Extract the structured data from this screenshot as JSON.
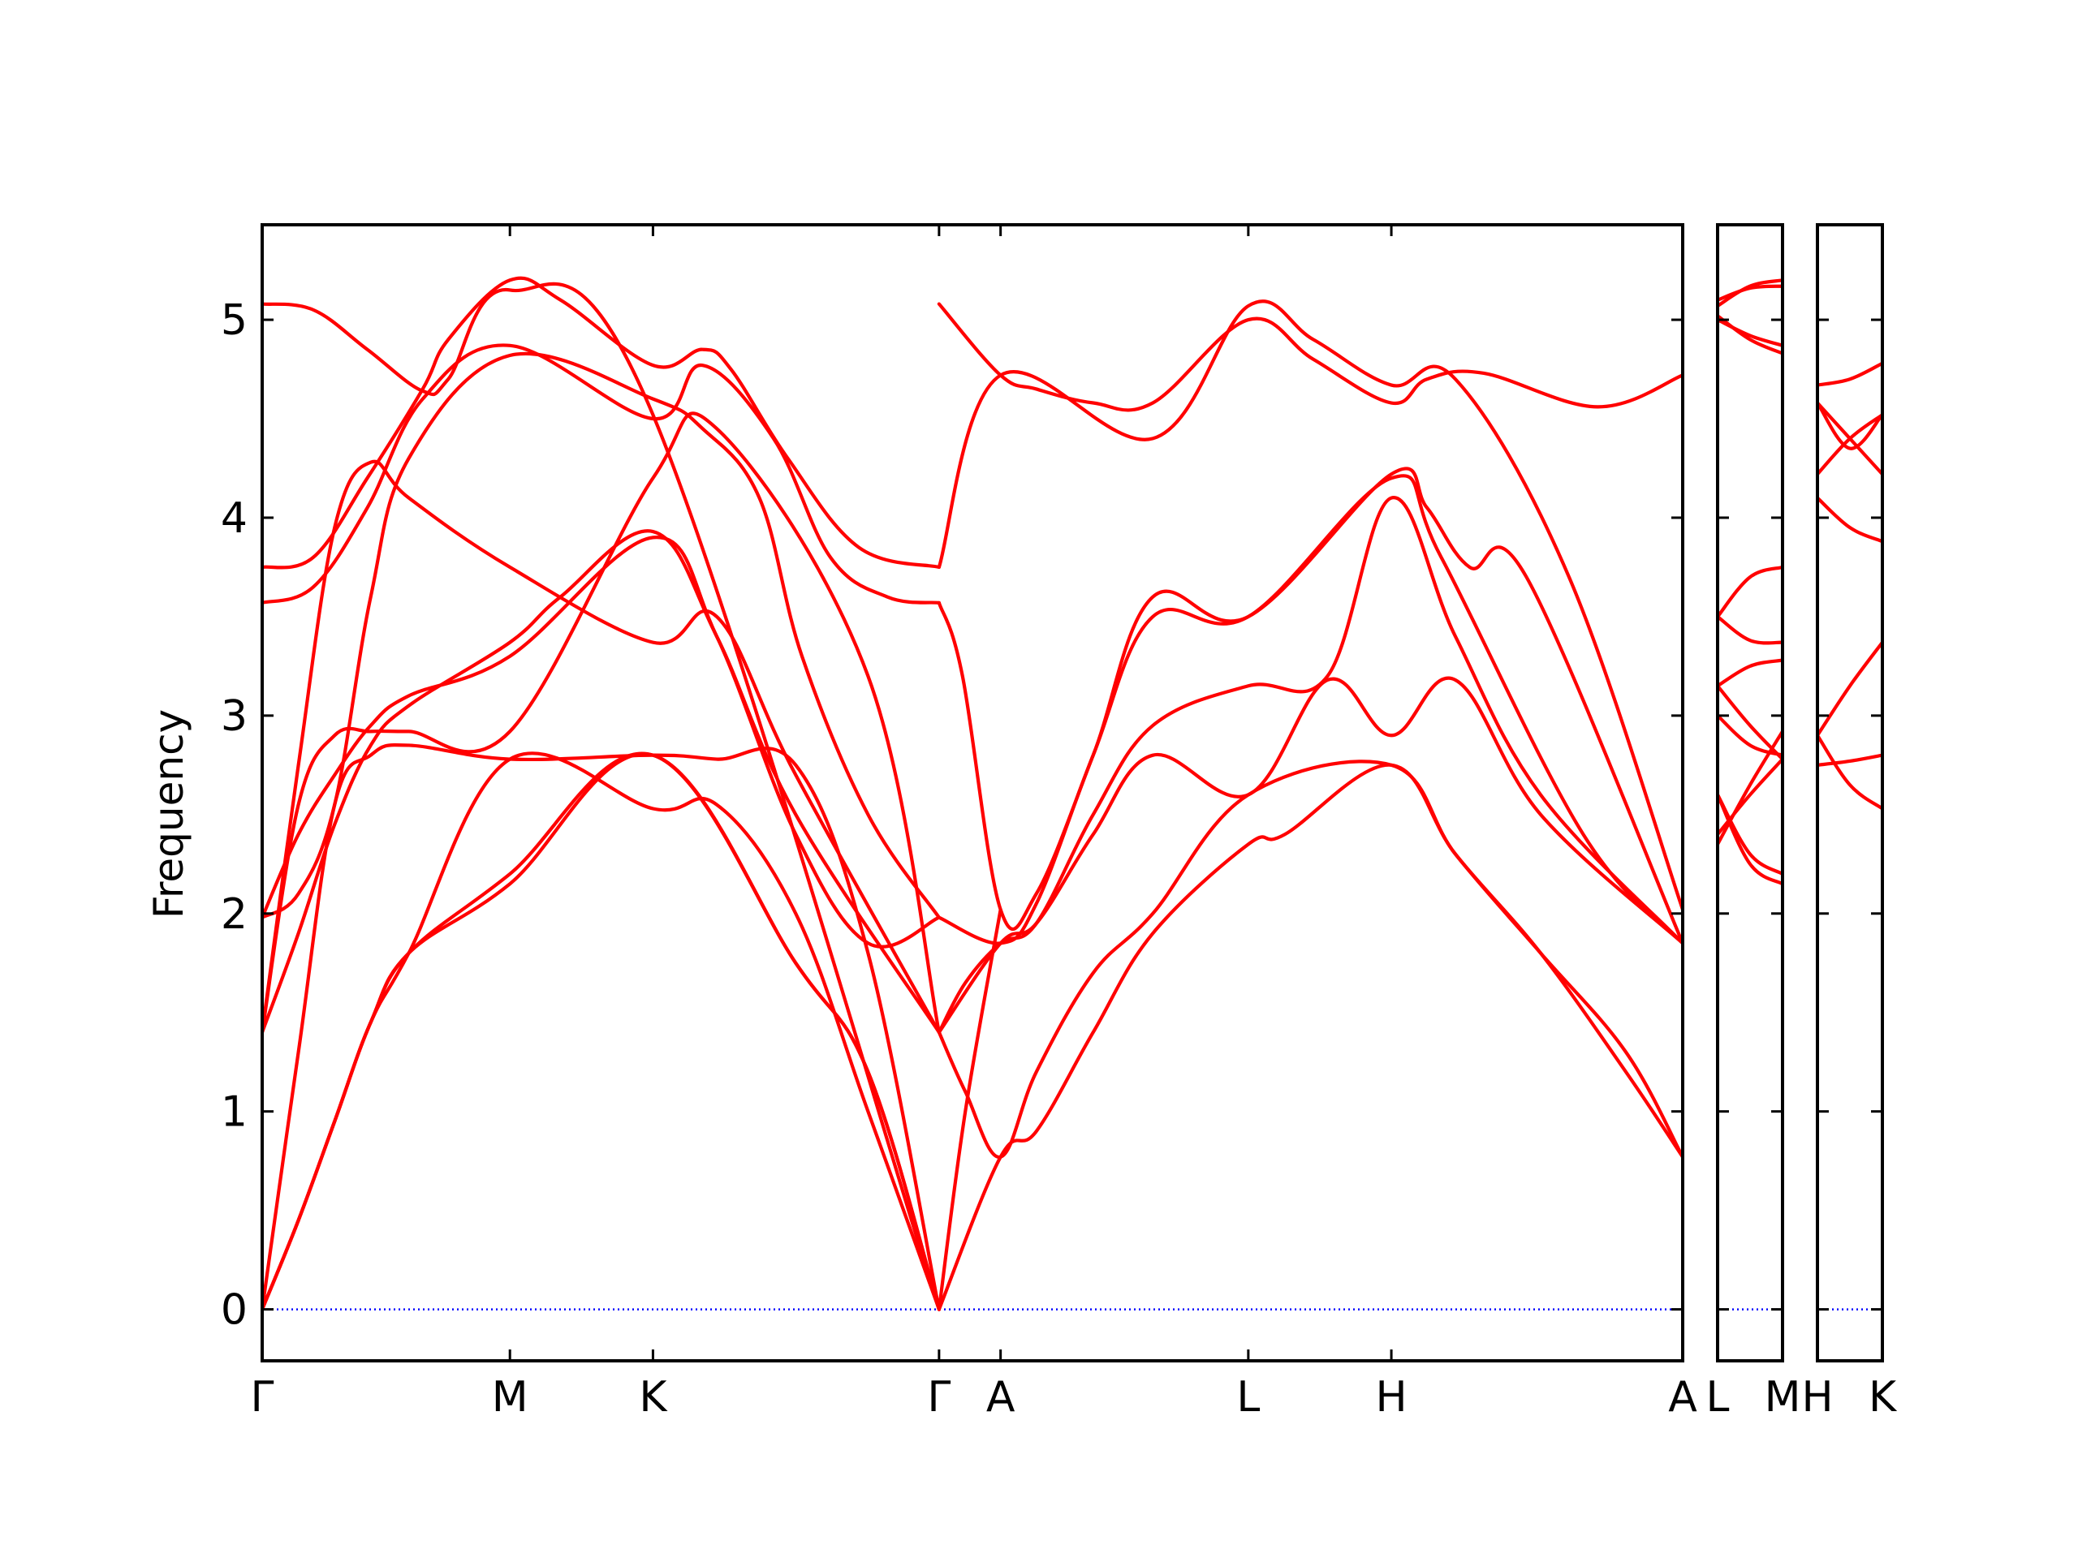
{
  "chart_data": {
    "type": "line",
    "ylabel": "Frequency",
    "ylim": [
      -0.26,
      5.48
    ],
    "yticks": [
      0,
      1,
      2,
      3,
      4,
      5
    ],
    "zero_line_color": "#0000ff",
    "band_color": "#ff0000",
    "panels": [
      {
        "xlim": [
          0,
          1
        ],
        "xticks": [
          {
            "x": 0.0,
            "label": "Γ"
          },
          {
            "x": 0.1744,
            "label": "M"
          },
          {
            "x": 0.2751,
            "label": "K"
          },
          {
            "x": 0.4765,
            "label": "Γ"
          },
          {
            "x": 0.5198,
            "label": "A"
          },
          {
            "x": 0.6942,
            "label": "L"
          },
          {
            "x": 0.7949,
            "label": "H"
          },
          {
            "x": 1.0,
            "label": "A"
          }
        ],
        "series": [
          {
            "x": [
              0,
              0.036,
              0.074,
              0.113,
              0.131,
              0.1744,
              0.2751,
              0.4765
            ],
            "y": [
              5.08,
              5.05,
              4.85,
              4.64,
              4.7,
              5.15,
              4.52,
              0.0
            ]
          },
          {
            "x": [
              0,
              0.036,
              0.074,
              0.113,
              0.131,
              0.1744,
              0.21,
              0.2751,
              0.31,
              0.33,
              0.37,
              0.42,
              0.4765
            ],
            "y": [
              3.75,
              3.8,
              4.2,
              4.65,
              4.9,
              5.2,
              5.1,
              4.77,
              4.85,
              4.75,
              4.3,
              3.85,
              3.75
            ]
          },
          {
            "x": [
              0,
              0.036,
              0.074,
              0.113,
              0.1744,
              0.2751,
              0.31,
              0.36,
              0.4,
              0.44,
              0.4765
            ],
            "y": [
              3.57,
              3.65,
              4.05,
              4.6,
              4.87,
              4.5,
              4.77,
              4.4,
              3.8,
              3.6,
              3.57
            ]
          },
          {
            "x": [
              0,
              0.0255,
              0.051,
              0.0764,
              0.1032,
              0.1744,
              0.2751,
              0.32,
              0.3756,
              0.4765
            ],
            "y": [
              1.4,
              2.75,
              3.95,
              4.28,
              4.1,
              3.75,
              3.37,
              3.5,
              2.7,
              1.4
            ]
          },
          {
            "x": [
              0,
              0.0255,
              0.051,
              0.0764,
              0.1032,
              0.1744,
              0.2751,
              0.31,
              0.35,
              0.38,
              0.4265,
              0.4765
            ],
            "y": [
              1.98,
              2.1,
              2.55,
              3.6,
              4.3,
              4.82,
              4.6,
              4.45,
              4.1,
              3.3,
              2.5,
              1.98
            ]
          },
          {
            "x": [
              0,
              0.0255,
              0.051,
              0.0764,
              0.1032,
              0.1744,
              0.2751,
              0.32,
              0.4265,
              0.4765
            ],
            "y": [
              1.4,
              2.55,
              2.9,
              2.92,
              2.92,
              2.92,
              4.2,
              4.45,
              3.2,
              1.4
            ]
          },
          {
            "x": [
              0,
              0.0255,
              0.051,
              0.0764,
              0.1032,
              0.1744,
              0.21,
              0.2751,
              0.32,
              0.3756,
              0.4765
            ],
            "y": [
              1.4,
              1.9,
              2.45,
              2.85,
              3.05,
              3.37,
              3.6,
              3.93,
              3.4,
              2.5,
              1.4
            ]
          },
          {
            "x": [
              0,
              0.0255,
              0.051,
              0.0764,
              0.1032,
              0.1744,
              0.2751,
              0.32,
              0.3756,
              0.4265,
              0.4765
            ],
            "y": [
              1.98,
              2.4,
              2.7,
              2.95,
              3.1,
              3.3,
              3.9,
              3.4,
              2.4,
              1.85,
              1.98
            ]
          },
          {
            "x": [
              0,
              0.0255,
              0.051,
              0.0764,
              0.1032,
              0.1744,
              0.2751,
              0.32,
              0.3756,
              0.4265,
              0.4765
            ],
            "y": [
              0,
              1.3,
              2.55,
              2.8,
              2.85,
              2.78,
              2.8,
              2.78,
              2.75,
              1.8,
              0.0
            ]
          },
          {
            "x": [
              0,
              0.0255,
              0.051,
              0.0764,
              0.1032,
              0.1744,
              0.2751,
              0.32,
              0.3756,
              0.4265,
              0.4765
            ],
            "y": [
              0,
              0.45,
              0.95,
              1.45,
              1.8,
              2.78,
              2.53,
              2.55,
              2.0,
              1.0,
              0.0
            ]
          },
          {
            "x": [
              0,
              0.0255,
              0.051,
              0.0764,
              0.1032,
              0.1744,
              0.2751,
              0.3756,
              0.4265,
              0.4765
            ],
            "y": [
              0,
              0.45,
              0.95,
              1.45,
              1.8,
              2.2,
              2.8,
              1.75,
              1.2,
              0.0
            ]
          },
          {
            "x": [
              0,
              0.0255,
              0.051,
              0.0764,
              0.1032,
              0.1744,
              0.2751,
              0.3756,
              0.4265,
              0.4765
            ],
            "y": [
              0,
              0.45,
              0.95,
              1.45,
              1.8,
              2.15,
              2.8,
              1.75,
              1.2,
              0.0
            ]
          },
          {
            "x": [
              0.4765,
              0.5198,
              0.545,
              0.585,
              0.627,
              0.6942,
              0.74,
              0.7949,
              0.82,
              0.86,
              0.94,
              1.0
            ],
            "y": [
              5.08,
              4.72,
              4.65,
              4.58,
              4.58,
              5.0,
              4.8,
              4.58,
              4.7,
              4.73,
              4.56,
              4.72
            ]
          },
          {
            "x": [
              0.4765,
              0.5198,
              0.627,
              0.6942,
              0.74,
              0.7949,
              0.84,
              0.92,
              1.0
            ],
            "y": [
              3.75,
              4.72,
              4.4,
              5.07,
              4.9,
              4.67,
              4.7,
              3.7,
              2.02
            ]
          },
          {
            "x": [
              0.4765,
              0.493,
              0.5198,
              0.545,
              0.585,
              0.627,
              0.6942,
              0.7949,
              0.82,
              0.85,
              0.89,
              1.0
            ],
            "y": [
              3.57,
              3.2,
              2.02,
              2.1,
              2.8,
              3.6,
              3.5,
              4.22,
              4.05,
              3.75,
              3.7,
              1.85
            ]
          },
          {
            "x": [
              0.4765,
              0.5198,
              0.545,
              0.585,
              0.627,
              0.6942,
              0.7949,
              0.83,
              0.93,
              1.0
            ],
            "y": [
              1.98,
              1.85,
              2.05,
              2.8,
              3.5,
              3.5,
              4.2,
              3.8,
              2.4,
              1.85
            ]
          },
          {
            "x": [
              0.4765,
              0.495,
              0.5198,
              0.545,
              0.585,
              0.627,
              0.6942,
              0.75,
              0.7949,
              0.84,
              0.9,
              1.0
            ],
            "y": [
              1.4,
              1.65,
              1.85,
              1.95,
              2.5,
              2.95,
              3.15,
              3.2,
              4.1,
              3.4,
              2.6,
              1.85
            ]
          },
          {
            "x": [
              0.4765,
              0.5198,
              0.545,
              0.585,
              0.627,
              0.6942,
              0.75,
              0.7949,
              0.84,
              0.9,
              1.0
            ],
            "y": [
              1.4,
              1.85,
              1.95,
              2.4,
              2.8,
              2.6,
              3.18,
              2.9,
              3.18,
              2.5,
              1.85
            ]
          },
          {
            "x": [
              0.4765,
              0.495,
              0.5198,
              0.545,
              0.585,
              0.627,
              0.6942,
              0.7949,
              0.84,
              0.9,
              0.96,
              1.0
            ],
            "y": [
              1.4,
              1.1,
              0.77,
              1.2,
              1.7,
              2.0,
              2.6,
              2.75,
              2.3,
              1.8,
              1.3,
              0.77
            ]
          },
          {
            "x": [
              0.4765,
              0.5198,
              0.545,
              0.585,
              0.627,
              0.6942,
              0.72,
              0.7949,
              0.84,
              0.9,
              0.96,
              1.0
            ],
            "y": [
              0.0,
              0.77,
              0.9,
              1.4,
              1.9,
              2.35,
              2.4,
              2.75,
              2.3,
              1.8,
              1.2,
              0.77
            ]
          },
          {
            "x": [
              0.4765,
              0.495,
              0.5198
            ],
            "y": [
              0.0,
              1.0,
              2.02
            ]
          }
        ]
      },
      {
        "xlim": [
          0,
          1
        ],
        "xticks": [
          {
            "x": 0.0,
            "label": "L"
          },
          {
            "x": 1.0,
            "label": "M"
          }
        ],
        "series": [
          {
            "x": [
              0,
              0.5,
              1
            ],
            "y": [
              5.07,
              5.17,
              5.2
            ]
          },
          {
            "x": [
              0,
              0.5,
              1
            ],
            "y": [
              5.1,
              5.16,
              5.17
            ]
          },
          {
            "x": [
              0,
              0.5,
              1
            ],
            "y": [
              5.0,
              4.92,
              4.87
            ]
          },
          {
            "x": [
              0,
              0.5,
              1
            ],
            "y": [
              5.02,
              4.9,
              4.83
            ]
          },
          {
            "x": [
              0,
              0.5,
              1
            ],
            "y": [
              3.5,
              3.7,
              3.75
            ]
          },
          {
            "x": [
              0,
              0.5,
              1
            ],
            "y": [
              3.5,
              3.38,
              3.37
            ]
          },
          {
            "x": [
              0,
              0.5,
              1
            ],
            "y": [
              3.15,
              3.25,
              3.28
            ]
          },
          {
            "x": [
              0,
              0.5,
              1
            ],
            "y": [
              3.15,
              2.95,
              2.78
            ]
          },
          {
            "x": [
              0,
              0.5,
              1
            ],
            "y": [
              2.6,
              2.3,
              2.2
            ]
          },
          {
            "x": [
              0,
              0.5,
              1
            ],
            "y": [
              2.6,
              2.25,
              2.15
            ]
          },
          {
            "x": [
              0,
              0.5,
              1
            ],
            "y": [
              2.35,
              2.65,
              2.92
            ]
          },
          {
            "x": [
              0,
              0.5,
              1
            ],
            "y": [
              2.4,
              2.6,
              2.78
            ]
          },
          {
            "x": [
              0,
              0.5,
              1
            ],
            "y": [
              3.0,
              2.85,
              2.8
            ]
          }
        ]
      },
      {
        "xlim": [
          0,
          1
        ],
        "xticks": [
          {
            "x": 0.0,
            "label": "H"
          },
          {
            "x": 1.0,
            "label": "K"
          }
        ],
        "series": [
          {
            "x": [
              0,
              0.5,
              1
            ],
            "y": [
              4.67,
              4.7,
              4.78
            ]
          },
          {
            "x": [
              0,
              0.5,
              1
            ],
            "y": [
              4.58,
              4.35,
              4.52
            ]
          },
          {
            "x": [
              0,
              0.5,
              1
            ],
            "y": [
              4.22,
              4.4,
              4.52
            ]
          },
          {
            "x": [
              0,
              0.5,
              1
            ],
            "y": [
              4.58,
              4.4,
              4.22
            ]
          },
          {
            "x": [
              0,
              0.5,
              1
            ],
            "y": [
              4.1,
              3.95,
              3.88
            ]
          },
          {
            "x": [
              0,
              0.5,
              1
            ],
            "y": [
              2.75,
              2.77,
              2.8
            ]
          },
          {
            "x": [
              0,
              0.5,
              1
            ],
            "y": [
              2.9,
              2.65,
              2.53
            ]
          },
          {
            "x": [
              0,
              0.5,
              1
            ],
            "y": [
              2.9,
              3.15,
              3.37
            ]
          }
        ]
      }
    ]
  }
}
